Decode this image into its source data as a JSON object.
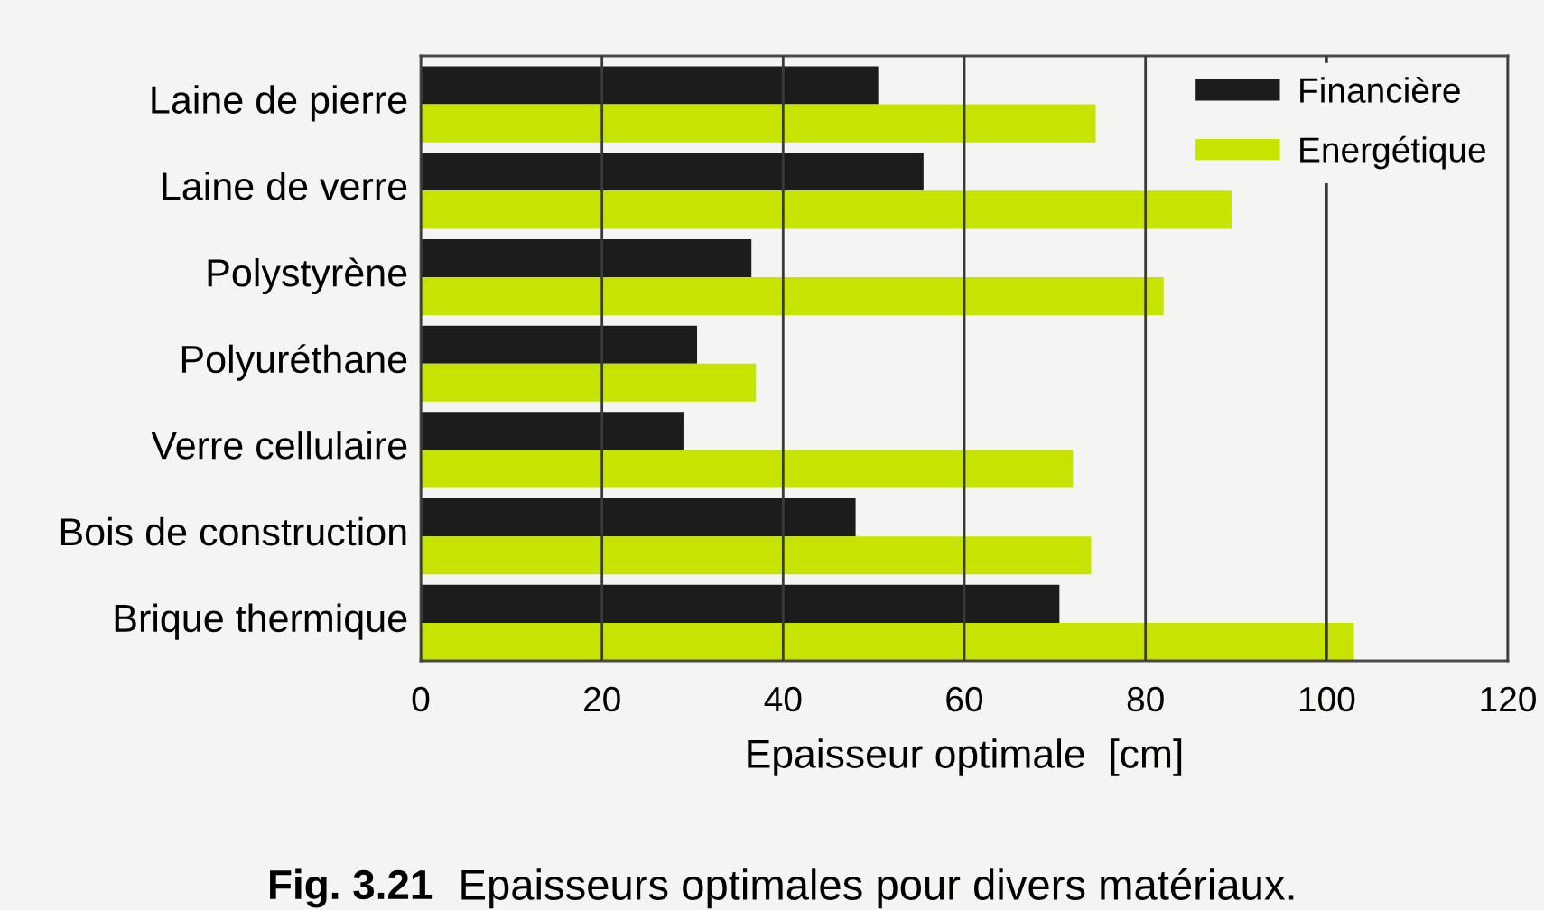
{
  "chart_data": {
    "type": "bar",
    "orientation": "horizontal",
    "categories": [
      "Laine de pierre",
      "Laine de verre",
      "Polystyrène",
      "Polyuréthane",
      "Verre cellulaire",
      "Bois de construction",
      "Brique thermique"
    ],
    "series": [
      {
        "name": "Financière",
        "color": "#1c1c1c",
        "values": [
          50.5,
          55.5,
          36.5,
          30.5,
          29,
          48,
          70.5
        ]
      },
      {
        "name": "Energétique",
        "color": "#c6e400",
        "values": [
          74.5,
          89.5,
          82,
          37,
          72,
          74,
          103
        ]
      }
    ],
    "xlabel": "Epaisseur optimale  [cm]",
    "xlim": [
      0,
      120
    ],
    "xticks": [
      0,
      20,
      40,
      60,
      80,
      100,
      120
    ],
    "grid": "x",
    "legend": "top right",
    "annotations": [
      "Fig. 3.21",
      "Epaisseurs optimales pour divers matériaux."
    ]
  }
}
